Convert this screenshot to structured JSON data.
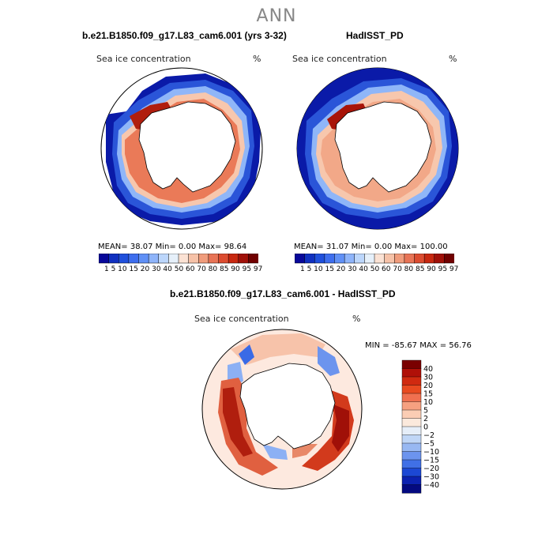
{
  "figure_title": "ANN",
  "panel_left": {
    "title": "b.e21.B1850.f09_g17.L83_cam6.001 (yrs 3-32)",
    "field_label": "Sea ice concentration",
    "units": "%",
    "stats": "MEAN=  38.07   Min=    0.00   Max=  98.64"
  },
  "panel_right": {
    "title": "HadISST_PD",
    "field_label": "Sea ice concentration",
    "units": "%",
    "stats": "MEAN=  31.07   Min=    0.00   Max=  100.00"
  },
  "horizontal_colorbar": {
    "ticks": [
      "1",
      "5",
      "10",
      "15",
      "20",
      "30",
      "40",
      "50",
      "60",
      "70",
      "80",
      "85",
      "90",
      "95",
      "97"
    ],
    "colors": [
      "#08089a",
      "#1030c0",
      "#2050dc",
      "#3e6eee",
      "#6090f6",
      "#8eb4fa",
      "#bcd6fb",
      "#e6f0fa",
      "#fbe2d4",
      "#f6c2a8",
      "#f09c7c",
      "#e87456",
      "#dc4c30",
      "#c82810",
      "#a01008",
      "#700000"
    ]
  },
  "panel_diff": {
    "title": "b.e21.B1850.f09_g17.L83_cam6.001 - HadISST_PD",
    "field_label": "Sea ice concentration",
    "units": "%",
    "minmax": "MIN = -85.67 MAX =  56.76"
  },
  "vertical_colorbar": {
    "labels": [
      "40",
      "30",
      "20",
      "15",
      "10",
      "5",
      "2",
      "0",
      "−2",
      "−5",
      "−10",
      "−15",
      "−20",
      "−30",
      "−40"
    ],
    "colors": [
      "#7a0000",
      "#b01008",
      "#d02a10",
      "#e84a20",
      "#f07050",
      "#f6a080",
      "#fbcdb4",
      "#fbe9dc",
      "#e6eef8",
      "#c0d6f6",
      "#98b8f2",
      "#6c94ee",
      "#4070e6",
      "#1c48d4",
      "#0c22b0",
      "#040a80"
    ]
  }
}
